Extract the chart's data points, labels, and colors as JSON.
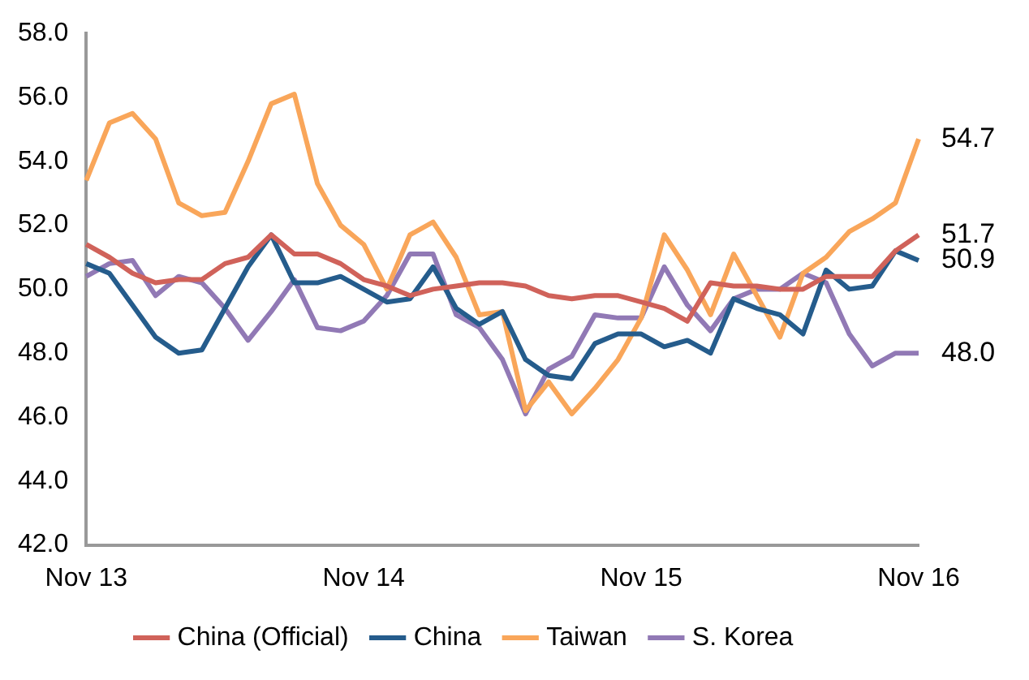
{
  "chart_data": {
    "type": "line",
    "categories": [
      "Nov 13",
      null,
      null,
      null,
      null,
      null,
      null,
      null,
      null,
      null,
      null,
      null,
      "Nov 14",
      null,
      null,
      null,
      null,
      null,
      null,
      null,
      null,
      null,
      null,
      null,
      "Nov 15",
      null,
      null,
      null,
      null,
      null,
      null,
      null,
      null,
      null,
      null,
      null,
      "Nov 16"
    ],
    "series": [
      {
        "name": "China (Official)",
        "color": "#d0625a",
        "values": [
          51.4,
          51.0,
          50.5,
          50.2,
          50.3,
          50.3,
          50.8,
          51.0,
          51.7,
          51.1,
          51.1,
          50.8,
          50.3,
          50.1,
          49.8,
          50.0,
          50.1,
          50.2,
          50.2,
          50.1,
          49.8,
          49.7,
          49.8,
          49.8,
          49.6,
          49.4,
          49.0,
          50.2,
          50.1,
          50.1,
          50.0,
          50.0,
          50.4,
          50.4,
          50.4,
          51.2,
          51.7
        ],
        "value_labels": [
          null,
          null,
          null,
          null,
          null,
          null,
          null,
          null,
          null,
          null,
          null,
          null,
          null,
          null,
          null,
          null,
          null,
          null,
          null,
          null,
          null,
          null,
          null,
          null,
          null,
          null,
          null,
          null,
          null,
          null,
          null,
          null,
          null,
          null,
          null,
          null,
          "51.7"
        ]
      },
      {
        "name": "China",
        "color": "#255c8c",
        "values": [
          50.8,
          50.5,
          49.5,
          48.5,
          48.0,
          48.1,
          49.4,
          50.7,
          51.7,
          50.2,
          50.2,
          50.4,
          50.0,
          49.6,
          49.7,
          50.7,
          49.4,
          48.9,
          49.3,
          47.8,
          47.3,
          47.2,
          48.3,
          48.6,
          48.6,
          48.2,
          48.4,
          48.0,
          49.7,
          49.4,
          49.2,
          48.6,
          50.6,
          50.0,
          50.1,
          51.2,
          50.9
        ],
        "value_labels": [
          null,
          null,
          null,
          null,
          null,
          null,
          null,
          null,
          null,
          null,
          null,
          null,
          null,
          null,
          null,
          null,
          null,
          null,
          null,
          null,
          null,
          null,
          null,
          null,
          null,
          null,
          null,
          null,
          null,
          null,
          null,
          null,
          null,
          null,
          null,
          null,
          "50.9"
        ]
      },
      {
        "name": "Taiwan",
        "color": "#f9a65a",
        "values": [
          53.4,
          55.2,
          55.5,
          54.7,
          52.7,
          52.3,
          52.4,
          54.0,
          55.8,
          56.1,
          53.3,
          52.0,
          51.4,
          50.0,
          51.7,
          52.1,
          51.0,
          49.2,
          49.3,
          46.2,
          47.1,
          46.1,
          46.9,
          47.8,
          49.1,
          51.7,
          50.6,
          49.2,
          51.1,
          49.8,
          48.5,
          50.5,
          51.0,
          51.8,
          52.2,
          52.7,
          54.7
        ],
        "value_labels": [
          null,
          null,
          null,
          null,
          null,
          null,
          null,
          null,
          null,
          null,
          null,
          null,
          null,
          null,
          null,
          null,
          null,
          null,
          null,
          null,
          null,
          null,
          null,
          null,
          null,
          null,
          null,
          null,
          null,
          null,
          null,
          null,
          null,
          null,
          null,
          null,
          "54.7"
        ]
      },
      {
        "name": "S. Korea",
        "color": "#9179b5",
        "values": [
          50.4,
          50.8,
          50.9,
          49.8,
          50.4,
          50.2,
          49.4,
          48.4,
          49.3,
          50.3,
          48.8,
          48.7,
          49.0,
          49.8,
          51.1,
          51.1,
          49.2,
          48.8,
          47.8,
          46.1,
          47.5,
          47.9,
          49.2,
          49.1,
          49.1,
          50.7,
          49.5,
          48.7,
          49.7,
          50.0,
          50.0,
          50.5,
          50.2,
          48.6,
          47.6,
          48.0,
          48.0
        ],
        "value_labels": [
          null,
          null,
          null,
          null,
          null,
          null,
          null,
          null,
          null,
          null,
          null,
          null,
          null,
          null,
          null,
          null,
          null,
          null,
          null,
          null,
          null,
          null,
          null,
          null,
          null,
          null,
          null,
          null,
          null,
          null,
          null,
          null,
          null,
          null,
          null,
          null,
          "48.0"
        ]
      }
    ],
    "ylim": [
      42,
      58
    ],
    "yticks": [
      {
        "value": 42,
        "label": "42.0"
      },
      {
        "value": 44,
        "label": "44.0"
      },
      {
        "value": 46,
        "label": "46.0"
      },
      {
        "value": 48,
        "label": "48.0"
      },
      {
        "value": 50,
        "label": "50.0"
      },
      {
        "value": 52,
        "label": "52.0"
      },
      {
        "value": 54,
        "label": "54.0"
      },
      {
        "value": 56,
        "label": "56.0"
      },
      {
        "value": 58,
        "label": "58.0"
      }
    ],
    "grid": false,
    "legend": "bottom",
    "marker": "none",
    "line_style": "solid"
  }
}
